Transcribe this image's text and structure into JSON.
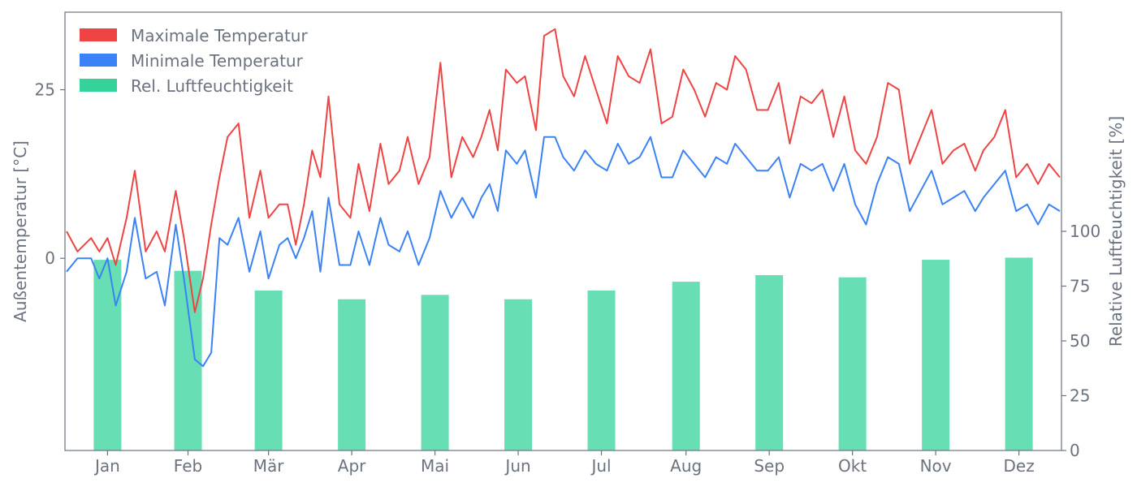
{
  "chart_data": {
    "type": "line",
    "xlabel": "",
    "ylabel_left": "Außentemperatur [°C]",
    "ylabel_right": "Relative Luftfeuchtigkeit [%]",
    "months": [
      "Jan",
      "Feb",
      "Mär",
      "Apr",
      "Mai",
      "Jun",
      "Jul",
      "Aug",
      "Sep",
      "Okt",
      "Nov",
      "Dez"
    ],
    "y_left_ticks": [
      0,
      25
    ],
    "y_left_range": [
      -28.5,
      36.5
    ],
    "y_right_ticks": [
      0,
      25,
      50,
      75,
      100
    ],
    "y_right_range": [
      0,
      100
    ],
    "legend_position": "top-left",
    "grid": false,
    "colors": {
      "max": "#ef4444",
      "min": "#3b82f6",
      "humidity": "#34d399",
      "axis": "#6b7280"
    },
    "series": [
      {
        "name": "Maximale Temperatur",
        "type": "line",
        "key": "max",
        "x": [
          "2021-01-01",
          "2021-01-05",
          "2021-01-10",
          "2021-01-13",
          "2021-01-16",
          "2021-01-19",
          "2021-01-23",
          "2021-01-26",
          "2021-01-30",
          "2021-02-03",
          "2021-02-06",
          "2021-02-10",
          "2021-02-13",
          "2021-02-17",
          "2021-02-20",
          "2021-02-23",
          "2021-02-26",
          "2021-03-01",
          "2021-03-05",
          "2021-03-09",
          "2021-03-13",
          "2021-03-16",
          "2021-03-20",
          "2021-03-23",
          "2021-03-26",
          "2021-03-29",
          "2021-04-01",
          "2021-04-04",
          "2021-04-07",
          "2021-04-11",
          "2021-04-15",
          "2021-04-18",
          "2021-04-22",
          "2021-04-26",
          "2021-04-29",
          "2021-05-03",
          "2021-05-06",
          "2021-05-10",
          "2021-05-14",
          "2021-05-18",
          "2021-05-22",
          "2021-05-26",
          "2021-05-30",
          "2021-06-02",
          "2021-06-05",
          "2021-06-08",
          "2021-06-11",
          "2021-06-15",
          "2021-06-18",
          "2021-06-22",
          "2021-06-25",
          "2021-06-29",
          "2021-07-02",
          "2021-07-06",
          "2021-07-10",
          "2021-07-14",
          "2021-07-18",
          "2021-07-22",
          "2021-07-26",
          "2021-07-30",
          "2021-08-03",
          "2021-08-07",
          "2021-08-11",
          "2021-08-15",
          "2021-08-19",
          "2021-08-23",
          "2021-08-27",
          "2021-08-31",
          "2021-09-03",
          "2021-09-07",
          "2021-09-11",
          "2021-09-15",
          "2021-09-19",
          "2021-09-23",
          "2021-09-27",
          "2021-10-01",
          "2021-10-05",
          "2021-10-09",
          "2021-10-13",
          "2021-10-17",
          "2021-10-21",
          "2021-10-25",
          "2021-10-29",
          "2021-11-02",
          "2021-11-06",
          "2021-11-10",
          "2021-11-14",
          "2021-11-18",
          "2021-11-22",
          "2021-11-26",
          "2021-11-30",
          "2021-12-03",
          "2021-12-07",
          "2021-12-11",
          "2021-12-15",
          "2021-12-19",
          "2021-12-23",
          "2021-12-27",
          "2021-12-31"
        ],
        "y": [
          4,
          1,
          3,
          1,
          3,
          -1,
          6,
          13,
          1,
          4,
          1,
          10,
          3,
          -8,
          -3,
          5,
          12,
          18,
          20,
          6,
          13,
          6,
          8,
          8,
          2,
          8,
          16,
          12,
          24,
          8,
          6,
          14,
          7,
          17,
          11,
          13,
          18,
          11,
          15,
          29,
          12,
          18,
          15,
          18,
          22,
          16,
          28,
          26,
          27,
          19,
          33,
          34,
          27,
          24,
          30,
          25,
          20,
          30,
          27,
          26,
          31,
          20,
          21,
          28,
          25,
          21,
          26,
          25,
          30,
          28,
          22,
          22,
          26,
          17,
          24,
          23,
          25,
          18,
          24,
          16,
          14,
          18,
          26,
          25,
          14,
          18,
          22,
          14,
          16,
          17,
          13,
          16,
          18,
          22,
          12,
          14,
          11,
          14,
          12
        ]
      },
      {
        "name": "Minimale Temperatur",
        "type": "line",
        "key": "min",
        "x": [
          "2021-01-01",
          "2021-01-05",
          "2021-01-10",
          "2021-01-13",
          "2021-01-16",
          "2021-01-19",
          "2021-01-23",
          "2021-01-26",
          "2021-01-30",
          "2021-02-03",
          "2021-02-06",
          "2021-02-10",
          "2021-02-13",
          "2021-02-17",
          "2021-02-20",
          "2021-02-23",
          "2021-02-26",
          "2021-03-01",
          "2021-03-05",
          "2021-03-09",
          "2021-03-13",
          "2021-03-16",
          "2021-03-20",
          "2021-03-23",
          "2021-03-26",
          "2021-03-29",
          "2021-04-01",
          "2021-04-04",
          "2021-04-07",
          "2021-04-11",
          "2021-04-15",
          "2021-04-18",
          "2021-04-22",
          "2021-04-26",
          "2021-04-29",
          "2021-05-03",
          "2021-05-06",
          "2021-05-10",
          "2021-05-14",
          "2021-05-18",
          "2021-05-22",
          "2021-05-26",
          "2021-05-30",
          "2021-06-02",
          "2021-06-05",
          "2021-06-08",
          "2021-06-11",
          "2021-06-15",
          "2021-06-18",
          "2021-06-22",
          "2021-06-25",
          "2021-06-29",
          "2021-07-02",
          "2021-07-06",
          "2021-07-10",
          "2021-07-14",
          "2021-07-18",
          "2021-07-22",
          "2021-07-26",
          "2021-07-30",
          "2021-08-03",
          "2021-08-07",
          "2021-08-11",
          "2021-08-15",
          "2021-08-19",
          "2021-08-23",
          "2021-08-27",
          "2021-08-31",
          "2021-09-03",
          "2021-09-07",
          "2021-09-11",
          "2021-09-15",
          "2021-09-19",
          "2021-09-23",
          "2021-09-27",
          "2021-10-01",
          "2021-10-05",
          "2021-10-09",
          "2021-10-13",
          "2021-10-17",
          "2021-10-21",
          "2021-10-25",
          "2021-10-29",
          "2021-11-02",
          "2021-11-06",
          "2021-11-10",
          "2021-11-14",
          "2021-11-18",
          "2021-11-22",
          "2021-11-26",
          "2021-11-30",
          "2021-12-03",
          "2021-12-07",
          "2021-12-11",
          "2021-12-15",
          "2021-12-19",
          "2021-12-23",
          "2021-12-27",
          "2021-12-31"
        ],
        "y": [
          -2,
          0,
          0,
          -3,
          0,
          -7,
          -2,
          6,
          -3,
          -2,
          -7,
          5,
          -3,
          -15,
          -16,
          -14,
          3,
          2,
          6,
          -2,
          4,
          -3,
          2,
          3,
          0,
          3,
          7,
          -2,
          9,
          -1,
          -1,
          4,
          -1,
          6,
          2,
          1,
          4,
          -1,
          3,
          10,
          6,
          9,
          6,
          9,
          11,
          7,
          16,
          14,
          16,
          9,
          18,
          18,
          15,
          13,
          16,
          14,
          13,
          17,
          14,
          15,
          18,
          12,
          12,
          16,
          14,
          12,
          15,
          14,
          17,
          15,
          13,
          13,
          15,
          9,
          14,
          13,
          14,
          10,
          14,
          8,
          5,
          11,
          15,
          14,
          7,
          10,
          13,
          8,
          9,
          10,
          7,
          9,
          11,
          13,
          7,
          8,
          5,
          8,
          7
        ]
      },
      {
        "name": "Rel. Luftfeuchtigkeit",
        "type": "bar",
        "key": "humidity",
        "axis": "right",
        "categories": [
          "Jan",
          "Feb",
          "Mär",
          "Apr",
          "Mai",
          "Jun",
          "Jul",
          "Aug",
          "Sep",
          "Okt",
          "Nov",
          "Dez"
        ],
        "values": [
          87,
          82,
          73,
          69,
          71,
          69,
          73,
          77,
          80,
          79,
          87,
          88
        ]
      }
    ]
  }
}
